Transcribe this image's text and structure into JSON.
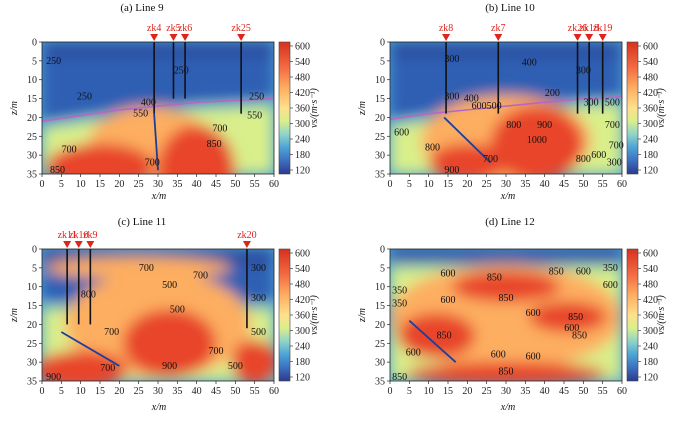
{
  "chart_data": [
    {
      "type": "heatmap",
      "title": "(a) Line 9",
      "xlabel": "x/m",
      "ylabel": "z/m",
      "xlim": [
        0,
        60
      ],
      "ylim": [
        35,
        0
      ],
      "xticks": [
        "0",
        "5",
        "10",
        "15",
        "20",
        "25",
        "30",
        "35",
        "40",
        "45",
        "50",
        "55",
        "60"
      ],
      "yticks": [
        "0",
        "5",
        "10",
        "15",
        "20",
        "25",
        "30",
        "35"
      ],
      "colorbar": {
        "label": "vs/(m·s⁻¹)",
        "ticks": [
          "600",
          "540",
          "480",
          "420",
          "360",
          "300",
          "240",
          "180",
          "120"
        ]
      },
      "boreholes": [
        {
          "name": "zk4",
          "x": 29,
          "depth": 19
        },
        {
          "name": "zk5",
          "x": 34,
          "depth": 15
        },
        {
          "name": "zk6",
          "x": 37,
          "depth": 15
        },
        {
          "name": "zk25",
          "x": 51.5,
          "depth": 19
        }
      ],
      "contour_labels": [
        {
          "text": "250",
          "x": 3,
          "z": 5
        },
        {
          "text": "250",
          "x": 36,
          "z": 7.5
        },
        {
          "text": "250",
          "x": 11,
          "z": 14.5
        },
        {
          "text": "250",
          "x": 55.5,
          "z": 14.5
        },
        {
          "text": "400",
          "x": 27.5,
          "z": 16
        },
        {
          "text": "550",
          "x": 25.5,
          "z": 19
        },
        {
          "text": "550",
          "x": 55,
          "z": 19.5
        },
        {
          "text": "700",
          "x": 7,
          "z": 28.5
        },
        {
          "text": "850",
          "x": 4,
          "z": 34
        },
        {
          "text": "700",
          "x": 28.5,
          "z": 32
        },
        {
          "text": "700",
          "x": 46,
          "z": 23
        },
        {
          "text": "850",
          "x": 44.5,
          "z": 27
        }
      ],
      "interface": [
        [
          0,
          21
        ],
        [
          10,
          19.5
        ],
        [
          20,
          18
        ],
        [
          30,
          17
        ],
        [
          40,
          16
        ],
        [
          50,
          15.5
        ],
        [
          60,
          15
        ]
      ],
      "faults": [
        [
          [
            29,
            19
          ],
          [
            30,
            34
          ]
        ]
      ],
      "field": {
        "z_interface": [
          [
            0,
            21
          ],
          [
            10,
            19.5
          ],
          [
            20,
            18
          ],
          [
            30,
            17
          ],
          [
            40,
            16
          ],
          [
            50,
            15.5
          ],
          [
            60,
            15
          ]
        ],
        "hot": [
          [
            40,
            34,
            10,
            12
          ],
          [
            15,
            33,
            14,
            6
          ]
        ],
        "warm": [
          [
            28,
            27,
            16,
            10
          ]
        ]
      }
    },
    {
      "type": "heatmap",
      "title": "(b) Line 10",
      "xlabel": "x/m",
      "ylabel": "z/m",
      "xlim": [
        0,
        60
      ],
      "ylim": [
        35,
        0
      ],
      "xticks": [
        "0",
        "5",
        "10",
        "15",
        "20",
        "25",
        "30",
        "35",
        "40",
        "45",
        "50",
        "55",
        "60"
      ],
      "yticks": [
        "0",
        "5",
        "10",
        "15",
        "20",
        "25",
        "30",
        "35"
      ],
      "colorbar": {
        "label": "vs/(m·s⁻¹)",
        "ticks": [
          "600",
          "540",
          "480",
          "420",
          "360",
          "300",
          "240",
          "180",
          "120"
        ]
      },
      "boreholes": [
        {
          "name": "zk8",
          "x": 14.5,
          "depth": 19
        },
        {
          "name": "zk7",
          "x": 28,
          "depth": 19
        },
        {
          "name": "zk26",
          "x": 48.5,
          "depth": 19
        },
        {
          "name": "zk18",
          "x": 51.5,
          "depth": 19
        },
        {
          "name": "zk19",
          "x": 55,
          "depth": 19
        }
      ],
      "contour_labels": [
        {
          "text": "300",
          "x": 16,
          "z": 4.5
        },
        {
          "text": "400",
          "x": 36,
          "z": 5.5
        },
        {
          "text": "300",
          "x": 50,
          "z": 7.5
        },
        {
          "text": "200",
          "x": 42,
          "z": 13.5
        },
        {
          "text": "300",
          "x": 16,
          "z": 14.5
        },
        {
          "text": "400",
          "x": 21,
          "z": 15
        },
        {
          "text": "600500",
          "x": 25,
          "z": 17
        },
        {
          "text": "300",
          "x": 52,
          "z": 16
        },
        {
          "text": "500",
          "x": 57.5,
          "z": 16
        },
        {
          "text": "600",
          "x": 3,
          "z": 24
        },
        {
          "text": "800",
          "x": 32,
          "z": 22
        },
        {
          "text": "900",
          "x": 40,
          "z": 22
        },
        {
          "text": "700",
          "x": 57.5,
          "z": 22
        },
        {
          "text": "800",
          "x": 11,
          "z": 28
        },
        {
          "text": "1000",
          "x": 38,
          "z": 26
        },
        {
          "text": "700",
          "x": 26,
          "z": 31
        },
        {
          "text": "900",
          "x": 16,
          "z": 34
        },
        {
          "text": "800",
          "x": 50,
          "z": 31
        },
        {
          "text": "600",
          "x": 54,
          "z": 30
        },
        {
          "text": "700",
          "x": 58.5,
          "z": 27.5
        },
        {
          "text": "300",
          "x": 58,
          "z": 32
        }
      ],
      "interface": [
        [
          0,
          20.5
        ],
        [
          10,
          19
        ],
        [
          20,
          18
        ],
        [
          30,
          17
        ],
        [
          40,
          16
        ],
        [
          50,
          15
        ],
        [
          60,
          14.5
        ]
      ],
      "faults": [
        [
          [
            14,
            20
          ],
          [
            26,
            32
          ]
        ]
      ],
      "field": {
        "z_interface": [
          [
            0,
            20.5
          ],
          [
            10,
            19
          ],
          [
            20,
            18
          ],
          [
            30,
            17
          ],
          [
            40,
            16
          ],
          [
            50,
            15
          ],
          [
            60,
            14.5
          ]
        ],
        "hot": [
          [
            38,
            27,
            12,
            10
          ],
          [
            20,
            32,
            10,
            5
          ]
        ],
        "warm": [
          [
            30,
            26,
            22,
            12
          ]
        ]
      }
    },
    {
      "type": "heatmap",
      "title": "(c) Line 11",
      "xlabel": "x/m",
      "ylabel": "z/m",
      "xlim": [
        0,
        60
      ],
      "ylim": [
        35,
        0
      ],
      "xticks": [
        "0",
        "5",
        "10",
        "15",
        "20",
        "25",
        "30",
        "35",
        "40",
        "45",
        "50",
        "55",
        "60"
      ],
      "yticks": [
        "0",
        "5",
        "10",
        "15",
        "20",
        "25",
        "30",
        "35"
      ],
      "colorbar": {
        "label": "vs/(m·s⁻¹)",
        "ticks": [
          "600",
          "540",
          "480",
          "420",
          "360",
          "300",
          "240",
          "180",
          "120"
        ]
      },
      "boreholes": [
        {
          "name": "zk11",
          "x": 6.5,
          "depth": 20
        },
        {
          "name": "zk10",
          "x": 9.5,
          "depth": 20
        },
        {
          "name": "zk9",
          "x": 12.5,
          "depth": 20
        },
        {
          "name": "zk20",
          "x": 53,
          "depth": 21
        }
      ],
      "contour_labels": [
        {
          "text": "700",
          "x": 27,
          "z": 5
        },
        {
          "text": "700",
          "x": 41,
          "z": 7
        },
        {
          "text": "500",
          "x": 33,
          "z": 9.5
        },
        {
          "text": "800",
          "x": 12,
          "z": 12
        },
        {
          "text": "500",
          "x": 35,
          "z": 16
        },
        {
          "text": "300",
          "x": 56,
          "z": 5
        },
        {
          "text": "300",
          "x": 56,
          "z": 13
        },
        {
          "text": "700",
          "x": 18,
          "z": 22
        },
        {
          "text": "500",
          "x": 56,
          "z": 22
        },
        {
          "text": "700",
          "x": 45,
          "z": 27
        },
        {
          "text": "900",
          "x": 33,
          "z": 31
        },
        {
          "text": "500",
          "x": 50,
          "z": 31
        },
        {
          "text": "700",
          "x": 17,
          "z": 31.5
        },
        {
          "text": "900",
          "x": 3,
          "z": 34
        }
      ],
      "interface": [],
      "faults": [
        [
          [
            5,
            22
          ],
          [
            20,
            31
          ]
        ]
      ],
      "field": {
        "z_interface": [
          [
            0,
            14
          ],
          [
            60,
            14
          ]
        ],
        "hot": [
          [
            33,
            25,
            12,
            9
          ],
          [
            10,
            32,
            12,
            5
          ],
          [
            55,
            30,
            6,
            6
          ]
        ],
        "warm": [
          [
            30,
            20,
            24,
            14
          ],
          [
            25,
            5,
            24,
            3
          ]
        ]
      }
    },
    {
      "type": "heatmap",
      "title": "(d) Line 12",
      "xlabel": "x/m",
      "ylabel": "z/m",
      "xlim": [
        0,
        60
      ],
      "ylim": [
        35,
        0
      ],
      "xticks": [
        "0",
        "5",
        "10",
        "15",
        "20",
        "25",
        "30",
        "35",
        "40",
        "45",
        "50",
        "55",
        "60"
      ],
      "yticks": [
        "0",
        "5",
        "10",
        "15",
        "20",
        "25",
        "30",
        "35"
      ],
      "colorbar": {
        "label": "vs/(m·s⁻¹)",
        "ticks": [
          "600",
          "540",
          "480",
          "420",
          "360",
          "300",
          "240",
          "180",
          "120"
        ]
      },
      "boreholes": [],
      "contour_labels": [
        {
          "text": "350",
          "x": 57,
          "z": 5
        },
        {
          "text": "600",
          "x": 15,
          "z": 6.5
        },
        {
          "text": "850",
          "x": 27,
          "z": 7.5
        },
        {
          "text": "850",
          "x": 43,
          "z": 6
        },
        {
          "text": "600",
          "x": 50,
          "z": 6
        },
        {
          "text": "600",
          "x": 57,
          "z": 9.5
        },
        {
          "text": "350",
          "x": 2.5,
          "z": 11
        },
        {
          "text": "350",
          "x": 2.5,
          "z": 14.5
        },
        {
          "text": "600",
          "x": 15,
          "z": 13.5
        },
        {
          "text": "850",
          "x": 30,
          "z": 13
        },
        {
          "text": "850",
          "x": 48,
          "z": 18
        },
        {
          "text": "600",
          "x": 37,
          "z": 17
        },
        {
          "text": "600",
          "x": 47,
          "z": 21
        },
        {
          "text": "850",
          "x": 49,
          "z": 23
        },
        {
          "text": "850",
          "x": 14,
          "z": 23
        },
        {
          "text": "600",
          "x": 6,
          "z": 27.5
        },
        {
          "text": "600",
          "x": 28,
          "z": 28
        },
        {
          "text": "600",
          "x": 37,
          "z": 28.5
        },
        {
          "text": "850",
          "x": 30,
          "z": 32.5
        },
        {
          "text": "850",
          "x": 2.5,
          "z": 34
        }
      ],
      "interface": [],
      "faults": [
        [
          [
            5,
            19
          ],
          [
            17,
            30
          ]
        ]
      ],
      "field": {
        "z_interface": [
          [
            0,
            3
          ],
          [
            60,
            3
          ]
        ],
        "hot": [
          [
            12,
            23,
            10,
            6
          ],
          [
            30,
            10,
            14,
            4
          ],
          [
            46,
            18,
            10,
            4
          ],
          [
            30,
            33,
            26,
            3
          ]
        ],
        "warm": [
          [
            30,
            18,
            30,
            14
          ]
        ]
      }
    }
  ]
}
